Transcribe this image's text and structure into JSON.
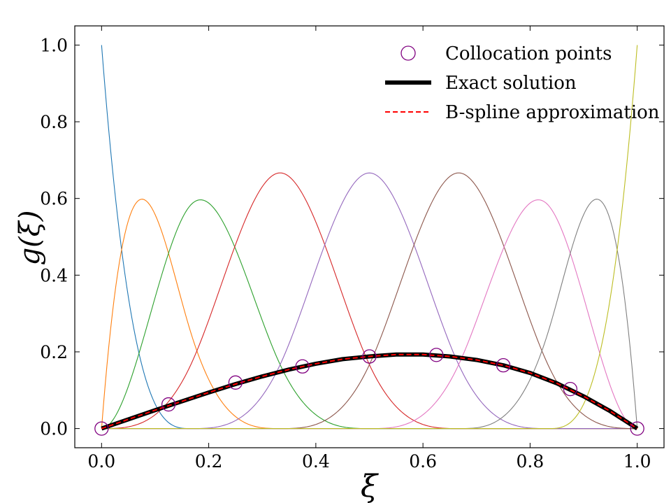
{
  "chart_data": {
    "type": "line",
    "xlabel": "ξ",
    "ylabel": "g(ξ)",
    "xlim": [
      -0.05,
      1.05
    ],
    "ylim": [
      -0.05,
      1.05
    ],
    "xticks": [
      0.0,
      0.2,
      0.4,
      0.6,
      0.8,
      1.0
    ],
    "xtick_labels": [
      "0.0",
      "0.2",
      "0.4",
      "0.6",
      "0.8",
      "1.0"
    ],
    "yticks": [
      0.0,
      0.2,
      0.4,
      0.6,
      0.8,
      1.0
    ],
    "ytick_labels": [
      "0.0",
      "0.2",
      "0.4",
      "0.6",
      "0.8",
      "1.0"
    ],
    "grid": false,
    "legend_position": "top-right",
    "basis": {
      "degree": 3,
      "knots": [
        0,
        0,
        0,
        0,
        0.1667,
        0.3333,
        0.5,
        0.6667,
        0.8333,
        1,
        1,
        1,
        1
      ],
      "colors": [
        "#1f77b4",
        "#ff7f0e",
        "#2ca02c",
        "#d62728",
        "#9467bd",
        "#8c564b",
        "#e377c2",
        "#7f7f7f",
        "#bcbd22"
      ]
    },
    "series": [
      {
        "name": "Collocation points",
        "kind": "markers",
        "color": "#800080",
        "x": [
          0.0,
          0.125,
          0.25,
          0.375,
          0.5,
          0.625,
          0.75,
          0.875,
          1.0
        ],
        "y": [
          0.0,
          0.063,
          0.12,
          0.162,
          0.188,
          0.192,
          0.165,
          0.103,
          0.0
        ]
      },
      {
        "name": "Exact solution",
        "kind": "line",
        "color": "#000000",
        "x": [
          0.0,
          0.05,
          0.1,
          0.15,
          0.2,
          0.25,
          0.3,
          0.35,
          0.4,
          0.45,
          0.5,
          0.55,
          0.6,
          0.65,
          0.7,
          0.75,
          0.8,
          0.85,
          0.9,
          0.95,
          1.0
        ],
        "y": [
          0.0,
          0.024,
          0.048,
          0.071,
          0.094,
          0.116,
          0.136,
          0.154,
          0.169,
          0.181,
          0.188,
          0.193,
          0.193,
          0.188,
          0.179,
          0.165,
          0.145,
          0.118,
          0.084,
          0.045,
          0.0
        ]
      },
      {
        "name": "B-spline approximation",
        "kind": "dashed-line",
        "color": "#ff0000",
        "x": [
          0.0,
          0.05,
          0.1,
          0.15,
          0.2,
          0.25,
          0.3,
          0.35,
          0.4,
          0.45,
          0.5,
          0.55,
          0.6,
          0.65,
          0.7,
          0.75,
          0.8,
          0.85,
          0.9,
          0.95,
          1.0
        ],
        "y": [
          0.0,
          0.024,
          0.048,
          0.071,
          0.094,
          0.116,
          0.136,
          0.154,
          0.169,
          0.181,
          0.188,
          0.193,
          0.193,
          0.188,
          0.179,
          0.165,
          0.145,
          0.118,
          0.084,
          0.045,
          0.0
        ]
      }
    ]
  }
}
